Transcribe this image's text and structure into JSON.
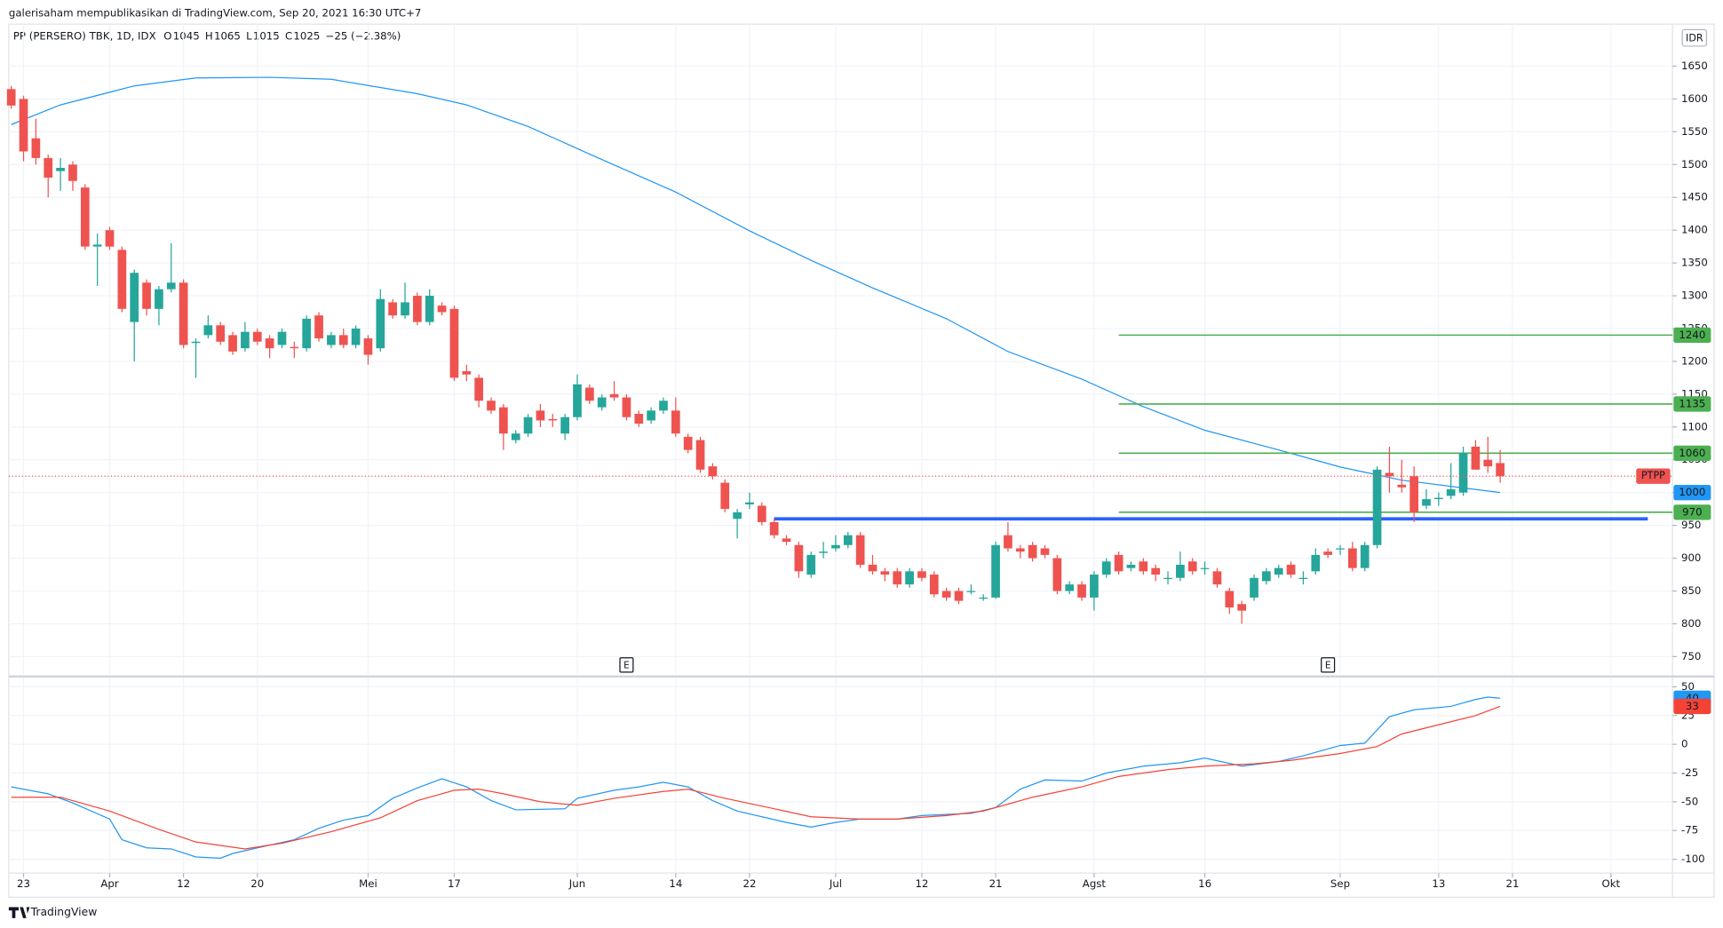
{
  "header": {
    "publisher": "galerisaham mempublikasikan di TradingView.com, Sep 20, 2021 16:30 UTC+7",
    "currency": "IDR",
    "brand": "TradingView"
  },
  "legend": {
    "symbol": "PP (PERSERO) TBK, 1D, IDX",
    "fields": [
      {
        "label": "O",
        "value": 1045
      },
      {
        "label": "H",
        "value": 1065
      },
      {
        "label": "L",
        "value": 1015
      },
      {
        "label": "C",
        "value": 1025
      }
    ],
    "change": "−25 (−2.38%)"
  },
  "chart_data": [
    {
      "type": "candlestick",
      "up_color": "#26a69a",
      "down_color": "#ef5350",
      "xlim": [
        -0.2,
        135
      ],
      "ylim": [
        723,
        1714
      ],
      "yticks": [
        750,
        800,
        850,
        900,
        950,
        1000,
        1050,
        1100,
        1150,
        1200,
        1250,
        1300,
        1350,
        1400,
        1450,
        1500,
        1550,
        1600,
        1650
      ],
      "grid": true,
      "ohlc": [
        [
          1615,
          1620,
          1585,
          1590
        ],
        [
          1600,
          1605,
          1505,
          1520
        ],
        [
          1540,
          1570,
          1500,
          1510
        ],
        [
          1510,
          1515,
          1450,
          1480
        ],
        [
          1490,
          1510,
          1460,
          1495
        ],
        [
          1500,
          1505,
          1460,
          1475
        ],
        [
          1465,
          1470,
          1370,
          1375
        ],
        [
          1375,
          1395,
          1315,
          1378
        ],
        [
          1400,
          1405,
          1370,
          1375
        ],
        [
          1370,
          1375,
          1275,
          1280
        ],
        [
          1260,
          1340,
          1200,
          1335
        ],
        [
          1320,
          1325,
          1270,
          1280
        ],
        [
          1280,
          1315,
          1255,
          1310
        ],
        [
          1310,
          1380,
          1305,
          1320
        ],
        [
          1320,
          1325,
          1220,
          1225
        ],
        [
          1228,
          1235,
          1175,
          1230
        ],
        [
          1240,
          1270,
          1235,
          1255
        ],
        [
          1255,
          1260,
          1225,
          1230
        ],
        [
          1240,
          1245,
          1210,
          1215
        ],
        [
          1220,
          1260,
          1215,
          1245
        ],
        [
          1245,
          1250,
          1225,
          1230
        ],
        [
          1235,
          1240,
          1205,
          1220
        ],
        [
          1225,
          1250,
          1220,
          1245
        ],
        [
          1222,
          1230,
          1205,
          1220
        ],
        [
          1220,
          1270,
          1215,
          1265
        ],
        [
          1270,
          1275,
          1230,
          1235
        ],
        [
          1225,
          1245,
          1220,
          1240
        ],
        [
          1240,
          1250,
          1220,
          1225
        ],
        [
          1225,
          1255,
          1220,
          1250
        ],
        [
          1235,
          1240,
          1195,
          1210
        ],
        [
          1220,
          1310,
          1215,
          1295
        ],
        [
          1290,
          1295,
          1265,
          1270
        ],
        [
          1270,
          1320,
          1265,
          1290
        ],
        [
          1300,
          1305,
          1255,
          1260
        ],
        [
          1260,
          1310,
          1255,
          1300
        ],
        [
          1285,
          1290,
          1270,
          1275
        ],
        [
          1280,
          1285,
          1170,
          1175
        ],
        [
          1185,
          1195,
          1170,
          1180
        ],
        [
          1175,
          1180,
          1130,
          1140
        ],
        [
          1140,
          1145,
          1120,
          1125
        ],
        [
          1130,
          1135,
          1065,
          1090
        ],
        [
          1080,
          1095,
          1075,
          1090
        ],
        [
          1090,
          1120,
          1085,
          1115
        ],
        [
          1125,
          1135,
          1100,
          1110
        ],
        [
          1112,
          1120,
          1100,
          1110
        ],
        [
          1090,
          1120,
          1080,
          1115
        ],
        [
          1115,
          1180,
          1110,
          1165
        ],
        [
          1160,
          1165,
          1135,
          1140
        ],
        [
          1130,
          1150,
          1125,
          1145
        ],
        [
          1150,
          1170,
          1140,
          1145
        ],
        [
          1145,
          1150,
          1110,
          1115
        ],
        [
          1120,
          1125,
          1100,
          1105
        ],
        [
          1110,
          1130,
          1105,
          1125
        ],
        [
          1125,
          1145,
          1120,
          1140
        ],
        [
          1125,
          1145,
          1085,
          1090
        ],
        [
          1085,
          1090,
          1060,
          1065
        ],
        [
          1080,
          1085,
          1030,
          1035
        ],
        [
          1040,
          1045,
          1020,
          1025
        ],
        [
          1015,
          1020,
          970,
          975
        ],
        [
          960,
          975,
          930,
          970
        ],
        [
          982,
          1000,
          975,
          985
        ],
        [
          980,
          985,
          950,
          955
        ],
        [
          955,
          960,
          930,
          935
        ],
        [
          930,
          935,
          920,
          925
        ],
        [
          920,
          925,
          870,
          880
        ],
        [
          875,
          910,
          870,
          905
        ],
        [
          908,
          925,
          900,
          910
        ],
        [
          915,
          935,
          910,
          920
        ],
        [
          920,
          940,
          915,
          935
        ],
        [
          935,
          940,
          885,
          890
        ],
        [
          890,
          905,
          875,
          880
        ],
        [
          880,
          885,
          865,
          875
        ],
        [
          880,
          885,
          855,
          860
        ],
        [
          860,
          885,
          855,
          880
        ],
        [
          880,
          885,
          865,
          870
        ],
        [
          875,
          880,
          840,
          845
        ],
        [
          850,
          855,
          835,
          840
        ],
        [
          850,
          855,
          830,
          835
        ],
        [
          850,
          860,
          845,
          850
        ],
        [
          840,
          845,
          835,
          840
        ],
        [
          840,
          925,
          838,
          920
        ],
        [
          935,
          955,
          910,
          915
        ],
        [
          915,
          920,
          900,
          910
        ],
        [
          920,
          925,
          895,
          900
        ],
        [
          915,
          920,
          900,
          905
        ],
        [
          900,
          905,
          845,
          850
        ],
        [
          850,
          865,
          845,
          860
        ],
        [
          860,
          865,
          835,
          840
        ],
        [
          840,
          880,
          820,
          875
        ],
        [
          875,
          900,
          870,
          895
        ],
        [
          905,
          910,
          875,
          880
        ],
        [
          885,
          895,
          880,
          890
        ],
        [
          895,
          900,
          875,
          880
        ],
        [
          885,
          890,
          865,
          875
        ],
        [
          870,
          880,
          860,
          870
        ],
        [
          870,
          910,
          865,
          890
        ],
        [
          895,
          900,
          875,
          880
        ],
        [
          885,
          895,
          875,
          885
        ],
        [
          880,
          885,
          855,
          860
        ],
        [
          850,
          855,
          815,
          825
        ],
        [
          830,
          835,
          800,
          820
        ],
        [
          840,
          875,
          835,
          870
        ],
        [
          865,
          885,
          860,
          880
        ],
        [
          875,
          890,
          870,
          885
        ],
        [
          890,
          895,
          870,
          875
        ],
        [
          870,
          880,
          860,
          870
        ],
        [
          880,
          915,
          875,
          905
        ],
        [
          910,
          915,
          900,
          905
        ],
        [
          915,
          920,
          905,
          915
        ],
        [
          915,
          925,
          880,
          885
        ],
        [
          885,
          925,
          880,
          920
        ],
        [
          920,
          1040,
          915,
          1035
        ],
        [
          1030,
          1070,
          1000,
          1025
        ],
        [
          1012,
          1050,
          1000,
          1008
        ],
        [
          1025,
          1040,
          955,
          970
        ],
        [
          980,
          1005,
          975,
          990
        ],
        [
          990,
          1000,
          980,
          992
        ],
        [
          995,
          1045,
          990,
          1005
        ],
        [
          1000,
          1070,
          995,
          1060
        ],
        [
          1070,
          1080,
          1035,
          1035
        ],
        [
          1050,
          1085,
          1030,
          1040
        ],
        [
          1045,
          1065,
          1015,
          1025
        ]
      ],
      "ma": {
        "color": "#2196f3",
        "x": [
          0,
          4,
          10,
          15,
          21,
          26,
          33,
          37,
          42,
          47,
          54,
          60,
          65,
          70,
          76,
          81,
          87,
          92,
          97,
          103,
          108,
          113,
          121
        ],
        "values": [
          1561,
          1591,
          1620,
          1632,
          1633,
          1630,
          1608,
          1591,
          1558,
          1516,
          1458,
          1399,
          1354,
          1312,
          1265,
          1215,
          1173,
          1131,
          1095,
          1065,
          1039,
          1019,
          1000
        ]
      },
      "levels": [
        {
          "value": 1240,
          "color": "#4caf50",
          "x0": 90
        },
        {
          "value": 1135,
          "color": "#4caf50",
          "x0": 90
        },
        {
          "value": 1060,
          "color": "#4caf50",
          "x0": 90
        },
        {
          "value": 970,
          "color": "#4caf50",
          "x0": 90
        }
      ],
      "support": {
        "value": 960,
        "color": "#2962ff",
        "x0": 62,
        "x1": 133
      },
      "last_label": "PTPP",
      "events": [
        {
          "x": 50,
          "label": "E"
        },
        {
          "x": 107,
          "label": "E"
        }
      ]
    },
    {
      "type": "line",
      "xlim": [
        -0.2,
        135
      ],
      "ylim": [
        -112,
        58
      ],
      "yticks": [
        50,
        25,
        0,
        -25,
        -50,
        -75,
        -100
      ],
      "grid": true,
      "xticks": [
        {
          "value": 1,
          "label": "23"
        },
        {
          "value": 8,
          "label": "Apr"
        },
        {
          "value": 14,
          "label": "12"
        },
        {
          "value": 20,
          "label": "20"
        },
        {
          "value": 29,
          "label": "Mei"
        },
        {
          "value": 36,
          "label": "17"
        },
        {
          "value": 46,
          "label": "Jun"
        },
        {
          "value": 54,
          "label": "14"
        },
        {
          "value": 60,
          "label": "22"
        },
        {
          "value": 67,
          "label": "Jul"
        },
        {
          "value": 74,
          "label": "12"
        },
        {
          "value": 80,
          "label": "21"
        },
        {
          "value": 88,
          "label": "Agst"
        },
        {
          "value": 97,
          "label": "16"
        },
        {
          "value": 108,
          "label": "Sep"
        },
        {
          "value": 116,
          "label": "13"
        },
        {
          "value": 122,
          "label": "21"
        },
        {
          "value": 130,
          "label": "Okt"
        }
      ],
      "series": [
        {
          "color": "#2196f3",
          "x": [
            0,
            3,
            5,
            8,
            9,
            11,
            13,
            15,
            17,
            18,
            20,
            23,
            25,
            27,
            29,
            31,
            33,
            35,
            37,
            39,
            41,
            45,
            46,
            49,
            51,
            53,
            55,
            57,
            59,
            63,
            65,
            67,
            69,
            72,
            74,
            78,
            80,
            82,
            84,
            87,
            89,
            92,
            95,
            97,
            100,
            103,
            105,
            108,
            110,
            112,
            114,
            117,
            119,
            120,
            121
          ],
          "values": [
            -37,
            -43,
            -51,
            -65,
            -83,
            -90,
            -91,
            -98,
            -99,
            -95,
            -90,
            -83,
            -73,
            -66,
            -62,
            -47,
            -38,
            -30,
            -37,
            -49,
            -57,
            -56,
            -47,
            -40,
            -37,
            -33,
            -37,
            -49,
            -58,
            -68,
            -72,
            -68,
            -65,
            -65,
            -62,
            -60,
            -55,
            -39,
            -31,
            -32,
            -25,
            -19,
            -16,
            -12,
            -19,
            -15,
            -10,
            -1,
            1,
            24,
            30,
            33,
            39,
            41,
            40
          ]
        },
        {
          "color": "#f44336",
          "x": [
            0,
            4,
            8,
            12,
            15,
            19,
            22,
            26,
            30,
            33,
            36,
            38,
            40,
            43,
            46,
            49,
            53,
            55,
            58,
            62,
            65,
            69,
            72,
            76,
            79,
            83,
            87,
            90,
            94,
            97,
            101,
            104,
            108,
            111,
            113,
            116,
            119,
            121
          ],
          "values": [
            -46,
            -46,
            -58,
            -74,
            -85,
            -91,
            -86,
            -76,
            -64,
            -49,
            -40,
            -39,
            -43,
            -50,
            -53,
            -47,
            -41,
            -39,
            -47,
            -56,
            -63,
            -65,
            -65,
            -62,
            -58,
            -46,
            -37,
            -28,
            -22,
            -19,
            -17,
            -14,
            -8,
            -2,
            9,
            17,
            25,
            33
          ]
        }
      ]
    }
  ]
}
